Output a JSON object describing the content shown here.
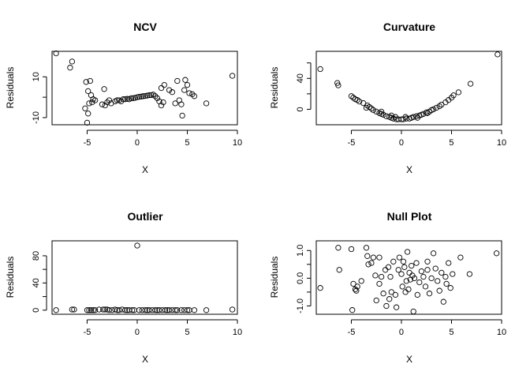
{
  "chart_data": [
    {
      "type": "scatter",
      "title": "NCV",
      "xlabel": "X",
      "ylabel": "Residuals",
      "xlim": [
        -8.5,
        10
      ],
      "ylim": [
        -13.5,
        22.5
      ],
      "xticks": [
        -5,
        0,
        5,
        10
      ],
      "yticks": [
        -10,
        0,
        10
      ],
      "ytick_labels": [
        "-10",
        "",
        "10"
      ],
      "grid": false,
      "points": [
        [
          -8.1,
          21.5
        ],
        [
          -6.5,
          17.5
        ],
        [
          -6.7,
          14.5
        ],
        [
          -5.1,
          7.5
        ],
        [
          -4.7,
          8
        ],
        [
          -4.9,
          3
        ],
        [
          -4.6,
          1
        ],
        [
          -4.4,
          -1
        ],
        [
          -4.8,
          -3
        ],
        [
          -5.2,
          -5.5
        ],
        [
          -4.9,
          -8
        ],
        [
          -5.0,
          -12.5
        ],
        [
          -4.5,
          -2.5
        ],
        [
          -4.2,
          -1.5
        ],
        [
          -3.5,
          -3.5
        ],
        [
          -3.2,
          -4
        ],
        [
          -3.0,
          -2.5
        ],
        [
          -2.8,
          -1.5
        ],
        [
          -2.6,
          -3
        ],
        [
          -3.3,
          4
        ],
        [
          -2.2,
          -2
        ],
        [
          -2.0,
          -1.5
        ],
        [
          -1.8,
          -1.5
        ],
        [
          -1.6,
          -2
        ],
        [
          -1.4,
          -1
        ],
        [
          -1.2,
          -1
        ],
        [
          -1.0,
          -0.8
        ],
        [
          -0.8,
          -1
        ],
        [
          -0.6,
          -0.5
        ],
        [
          -0.4,
          -0.5
        ],
        [
          -0.2,
          -0.3
        ],
        [
          0,
          0
        ],
        [
          0.2,
          0.2
        ],
        [
          0.4,
          0.3
        ],
        [
          0.6,
          0.5
        ],
        [
          0.8,
          0.6
        ],
        [
          1.0,
          0.8
        ],
        [
          1.2,
          1
        ],
        [
          1.4,
          1
        ],
        [
          1.6,
          1.3
        ],
        [
          1.8,
          0.5
        ],
        [
          2.0,
          -0.5
        ],
        [
          2.2,
          -2
        ],
        [
          2.4,
          -4
        ],
        [
          2.6,
          -2.5
        ],
        [
          2.4,
          4.5
        ],
        [
          2.7,
          6
        ],
        [
          3.2,
          3.5
        ],
        [
          3.5,
          2.5
        ],
        [
          3.8,
          -3
        ],
        [
          4.0,
          8
        ],
        [
          4.2,
          -1.5
        ],
        [
          4.4,
          -3.5
        ],
        [
          4.5,
          -9
        ],
        [
          4.7,
          3.5
        ],
        [
          4.8,
          8.5
        ],
        [
          5.0,
          6
        ],
        [
          5.2,
          2
        ],
        [
          5.5,
          1.5
        ],
        [
          5.7,
          0.5
        ],
        [
          6.9,
          -3
        ],
        [
          9.5,
          10.5
        ]
      ]
    },
    {
      "type": "scatter",
      "title": "Curvature",
      "xlabel": "X",
      "ylabel": "Residuals",
      "xlim": [
        -8.5,
        10
      ],
      "ylim": [
        -20,
        75
      ],
      "xticks": [
        -5,
        0,
        5,
        10
      ],
      "yticks": [
        0,
        20,
        40,
        60
      ],
      "ytick_labels": [
        "0",
        "",
        "40",
        ""
      ],
      "grid": false,
      "points": [
        [
          -8.1,
          52
        ],
        [
          -6.4,
          34
        ],
        [
          -6.3,
          31
        ],
        [
          -5.0,
          17
        ],
        [
          -4.8,
          15
        ],
        [
          -4.6,
          13
        ],
        [
          -4.4,
          12
        ],
        [
          -4.2,
          10
        ],
        [
          -3.8,
          8
        ],
        [
          -3.4,
          5
        ],
        [
          -3.2,
          3
        ],
        [
          -3.0,
          1
        ],
        [
          -2.8,
          -1
        ],
        [
          -2.5,
          -3
        ],
        [
          -2.2,
          -5
        ],
        [
          -2.0,
          -6
        ],
        [
          -1.8,
          -7
        ],
        [
          -1.5,
          -9
        ],
        [
          -1.2,
          -10
        ],
        [
          -1.0,
          -11
        ],
        [
          -0.8,
          -12
        ],
        [
          -0.5,
          -13
        ],
        [
          -0.3,
          -13
        ],
        [
          0,
          -13
        ],
        [
          0.2,
          -13
        ],
        [
          0.5,
          -12
        ],
        [
          0.8,
          -12
        ],
        [
          1.0,
          -11
        ],
        [
          1.2,
          -10
        ],
        [
          1.5,
          -9
        ],
        [
          1.8,
          -8
        ],
        [
          2.0,
          -7
        ],
        [
          2.2,
          -6
        ],
        [
          2.5,
          -4
        ],
        [
          2.8,
          -3
        ],
        [
          3.0,
          -1
        ],
        [
          3.2,
          0
        ],
        [
          3.5,
          2
        ],
        [
          3.8,
          4
        ],
        [
          4.0,
          6
        ],
        [
          4.4,
          9
        ],
        [
          4.7,
          12
        ],
        [
          5.0,
          15
        ],
        [
          5.2,
          18
        ],
        [
          5.7,
          22
        ],
        [
          6.9,
          33
        ],
        [
          9.6,
          71
        ],
        [
          -3.5,
          2
        ],
        [
          -2.0,
          -3
        ],
        [
          -1.0,
          -8
        ],
        [
          0.4,
          -10
        ],
        [
          1.6,
          -11
        ],
        [
          2.6,
          -5
        ],
        [
          -0.6,
          -10
        ]
      ]
    },
    {
      "type": "scatter",
      "title": "Outlier",
      "xlabel": "X",
      "ylabel": "Residuals",
      "xlim": [
        -8.5,
        10
      ],
      "ylim": [
        -6,
        102
      ],
      "xticks": [
        -5,
        0,
        5,
        10
      ],
      "yticks": [
        0,
        20,
        40,
        60,
        80
      ],
      "ytick_labels": [
        "0",
        "",
        "40",
        "",
        "80"
      ],
      "grid": false,
      "points": [
        [
          0,
          95
        ],
        [
          -8.1,
          0
        ],
        [
          -6.5,
          1
        ],
        [
          -6.3,
          1
        ],
        [
          -5.0,
          0
        ],
        [
          -4.8,
          0
        ],
        [
          -4.6,
          0
        ],
        [
          -4.4,
          0
        ],
        [
          -4.2,
          0
        ],
        [
          -3.8,
          1
        ],
        [
          -3.4,
          1
        ],
        [
          -3.2,
          1
        ],
        [
          -3.0,
          1
        ],
        [
          -2.8,
          0
        ],
        [
          -2.5,
          0
        ],
        [
          -2.2,
          1
        ],
        [
          -2.0,
          0
        ],
        [
          -1.8,
          0
        ],
        [
          -1.5,
          1
        ],
        [
          -1.2,
          0
        ],
        [
          -1.0,
          0
        ],
        [
          -0.8,
          0
        ],
        [
          -0.5,
          0
        ],
        [
          -0.3,
          0
        ],
        [
          0.2,
          0
        ],
        [
          0.5,
          0
        ],
        [
          0.8,
          0
        ],
        [
          1.0,
          0
        ],
        [
          1.2,
          0
        ],
        [
          1.5,
          0
        ],
        [
          1.8,
          0
        ],
        [
          2.0,
          0
        ],
        [
          2.2,
          0
        ],
        [
          2.5,
          0
        ],
        [
          2.8,
          0
        ],
        [
          3.0,
          0
        ],
        [
          3.2,
          0
        ],
        [
          3.5,
          0
        ],
        [
          3.8,
          0
        ],
        [
          4.0,
          0
        ],
        [
          4.4,
          0
        ],
        [
          4.7,
          0
        ],
        [
          5.0,
          0
        ],
        [
          5.2,
          0
        ],
        [
          5.7,
          0
        ],
        [
          6.9,
          0
        ],
        [
          9.5,
          1
        ]
      ]
    },
    {
      "type": "scatter",
      "title": "Null Plot",
      "xlabel": "X",
      "ylabel": "Residuals",
      "xlim": [
        -8.5,
        10
      ],
      "ylim": [
        -1.3,
        1.35
      ],
      "xticks": [
        -5,
        0,
        5,
        10
      ],
      "yticks": [
        -1.0,
        -0.5,
        0.0,
        0.5,
        1.0
      ],
      "ytick_labels": [
        "-1.0",
        "",
        "0.0",
        "",
        "1.0"
      ],
      "grid": false,
      "points": [
        [
          -8.1,
          -0.35
        ],
        [
          -6.3,
          1.1
        ],
        [
          -6.2,
          0.3
        ],
        [
          -5.0,
          1.05
        ],
        [
          -4.9,
          -1.15
        ],
        [
          -4.8,
          -0.2
        ],
        [
          -4.6,
          -0.4
        ],
        [
          -4.5,
          -0.45
        ],
        [
          -4.4,
          -0.3
        ],
        [
          -4.0,
          -0.1
        ],
        [
          -3.5,
          1.1
        ],
        [
          -3.4,
          0.8
        ],
        [
          -3.3,
          0.5
        ],
        [
          -3.0,
          0.55
        ],
        [
          -2.8,
          0.75
        ],
        [
          -2.6,
          0.1
        ],
        [
          -2.5,
          -0.8
        ],
        [
          -2.2,
          -0.2
        ],
        [
          -2.0,
          0.05
        ],
        [
          -1.8,
          -0.55
        ],
        [
          -1.6,
          0.3
        ],
        [
          -1.5,
          -1.0
        ],
        [
          -1.3,
          0.4
        ],
        [
          -1.2,
          -0.75
        ],
        [
          -1.1,
          0.05
        ],
        [
          -1.0,
          -0.5
        ],
        [
          -0.8,
          0.6
        ],
        [
          -0.6,
          -0.6
        ],
        [
          -0.5,
          -1.05
        ],
        [
          -0.3,
          0.3
        ],
        [
          -0.2,
          0.75
        ],
        [
          0,
          0.15
        ],
        [
          0.1,
          -0.3
        ],
        [
          0.2,
          0.6
        ],
        [
          0.3,
          0.4
        ],
        [
          0.5,
          -0.1
        ],
        [
          0.6,
          0.95
        ],
        [
          0.7,
          -0.4
        ],
        [
          0.8,
          0.2
        ],
        [
          0.9,
          -0.05
        ],
        [
          1.0,
          0.45
        ],
        [
          1.1,
          0.1
        ],
        [
          1.2,
          -1.2
        ],
        [
          1.3,
          0.0
        ],
        [
          1.5,
          0.55
        ],
        [
          1.6,
          -0.6
        ],
        [
          1.8,
          -0.15
        ],
        [
          2.0,
          0.25
        ],
        [
          2.2,
          0.05
        ],
        [
          2.4,
          -0.3
        ],
        [
          2.6,
          0.6
        ],
        [
          2.8,
          -0.55
        ],
        [
          3.0,
          0.0
        ],
        [
          3.2,
          0.9
        ],
        [
          3.4,
          0.35
        ],
        [
          3.6,
          -0.1
        ],
        [
          3.8,
          -0.45
        ],
        [
          4.0,
          0.2
        ],
        [
          4.2,
          -0.85
        ],
        [
          4.4,
          0.05
        ],
        [
          4.5,
          -0.2
        ],
        [
          4.7,
          0.55
        ],
        [
          4.9,
          -0.35
        ],
        [
          5.1,
          0.15
        ],
        [
          5.9,
          0.75
        ],
        [
          6.8,
          0.15
        ],
        [
          9.5,
          0.9
        ],
        [
          -2.2,
          0.75
        ],
        [
          0.4,
          -0.5
        ],
        [
          2.6,
          0.3
        ]
      ]
    }
  ]
}
